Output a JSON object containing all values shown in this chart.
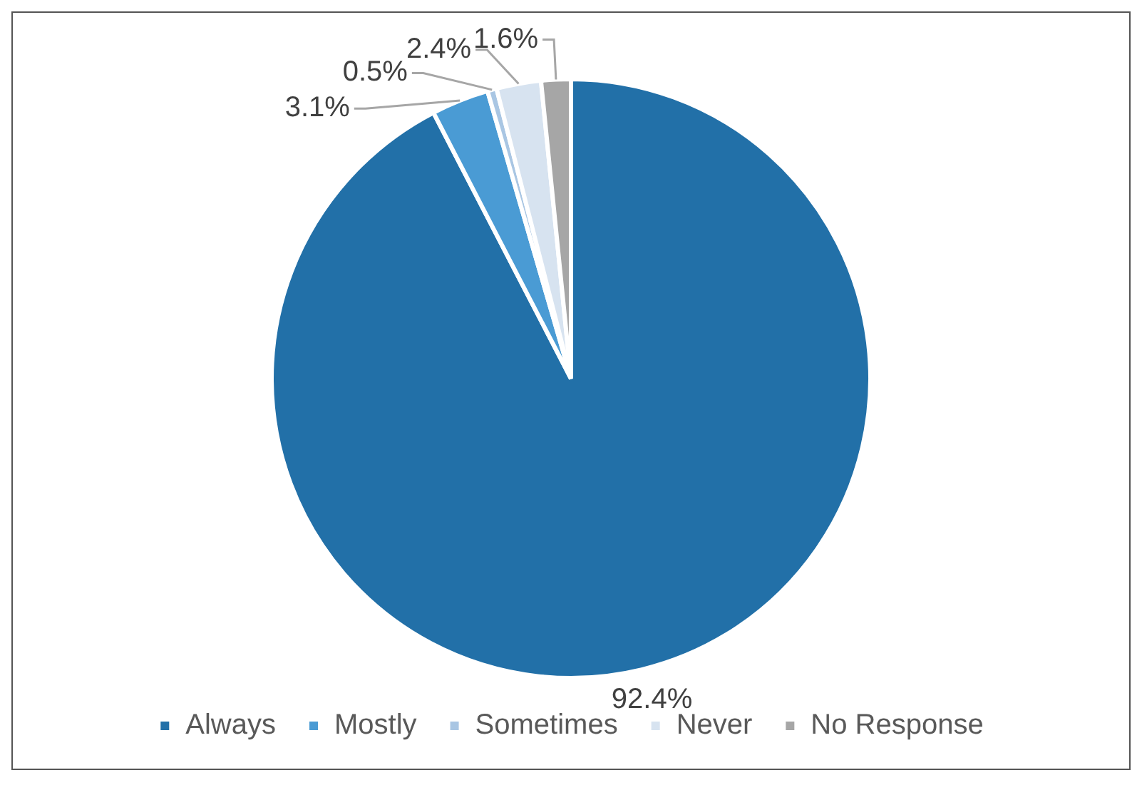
{
  "chart_data": {
    "type": "pie",
    "categories": [
      "Always",
      "Mostly",
      "Sometimes",
      "Never",
      "No Response"
    ],
    "values": [
      92.4,
      3.1,
      0.5,
      2.4,
      1.6
    ],
    "colors": [
      "#2270a8",
      "#4a9bd4",
      "#a9c6e3",
      "#d7e3f0",
      "#a6a6a6"
    ],
    "value_labels": [
      "92.4%",
      "3.1%",
      "0.5%",
      "2.4%",
      "1.6%"
    ],
    "legend": "bottom"
  }
}
